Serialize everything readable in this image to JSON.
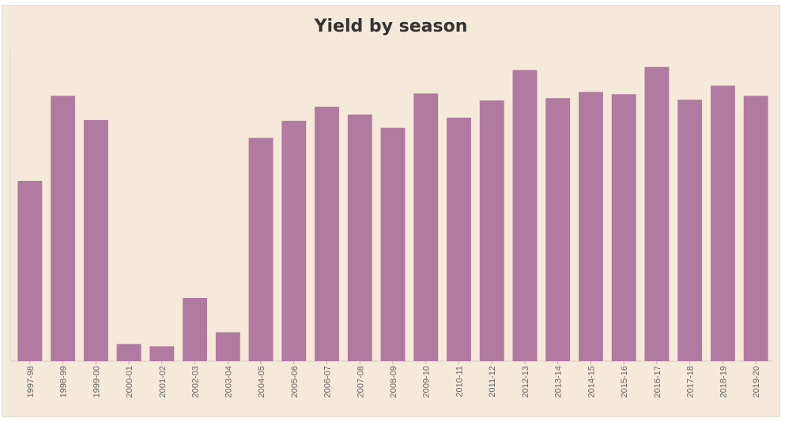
{
  "chart_data": {
    "type": "bar",
    "title": "Yield by season",
    "xlabel": "",
    "ylabel": "",
    "categories": [
      "1997-98",
      "1998-99",
      "1999-00",
      "2000-01",
      "2001-02",
      "2002-03",
      "2003-04",
      "2004-05",
      "2005-06",
      "2006-07",
      "2007-08",
      "2008-09",
      "2009-10",
      "2010-11",
      "2011-12",
      "2012-13",
      "2013-14",
      "2014-15",
      "2015-16",
      "2016-17",
      "2017-18",
      "2018-19",
      "2019-20"
    ],
    "values": [
      231,
      340,
      309,
      22,
      19,
      81,
      37,
      286,
      308,
      326,
      316,
      299,
      343,
      312,
      334,
      373,
      337,
      345,
      342,
      377,
      335,
      353,
      340
    ],
    "ylim": [
      0,
      400
    ],
    "grid": false,
    "bar_color": "#b07aa1",
    "background_color": "#f5e9d9"
  }
}
